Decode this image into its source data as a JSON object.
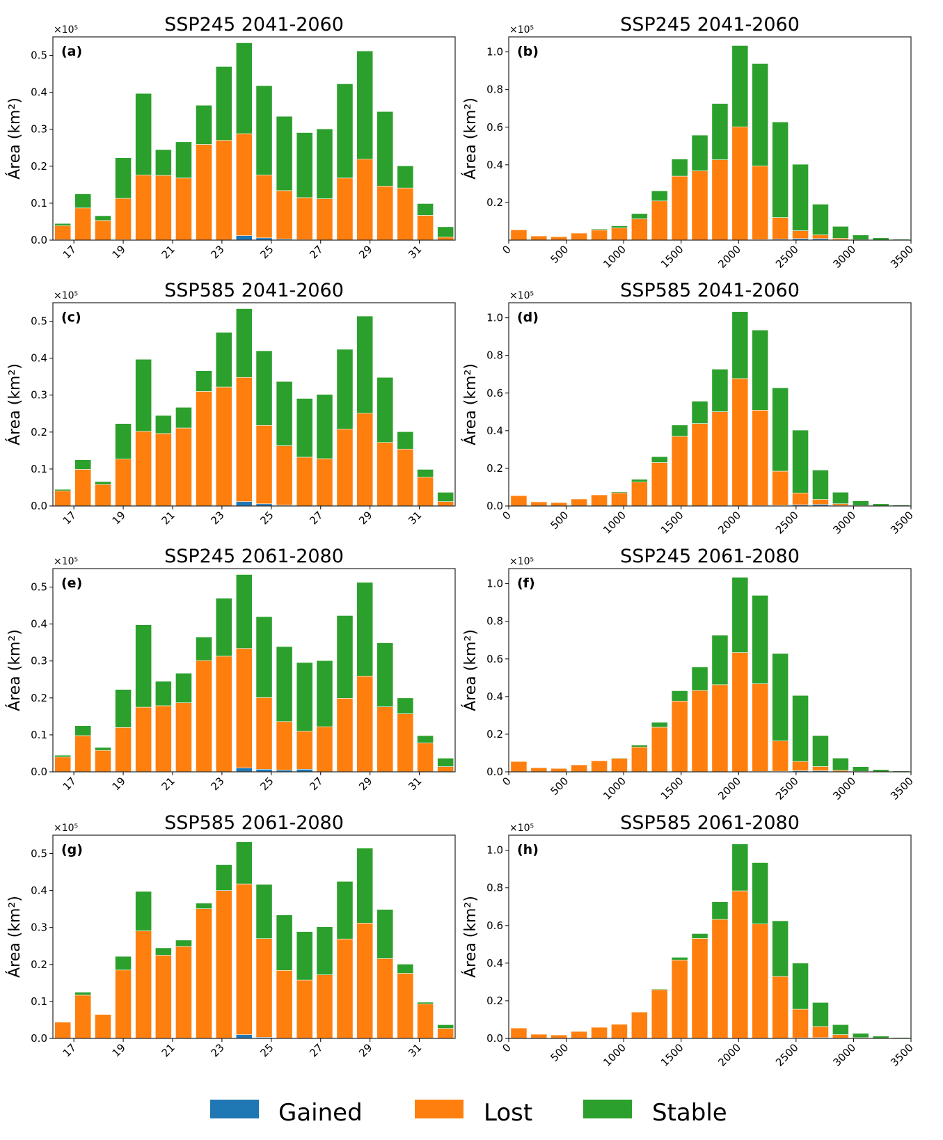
{
  "legend": [
    {
      "key": "gained",
      "label": "Gained",
      "color": "#1f77b4"
    },
    {
      "key": "lost",
      "label": "Lost",
      "color": "#ff7f0e"
    },
    {
      "key": "stable",
      "label": "Stable",
      "color": "#2ca02c"
    }
  ],
  "chart_data": [
    {
      "type": "bar",
      "stacked": true,
      "panel": "(a)",
      "title": "SSP245 2041-2060",
      "ylabel": "Área (km²)",
      "xlabel": "",
      "y_multiplier": "×10⁵",
      "xlim": [
        16.15,
        32.45
      ],
      "ylim": [
        0,
        0.55
      ],
      "xticks": [
        17,
        19,
        21,
        23,
        25,
        27,
        29,
        31
      ],
      "yticks": [
        0.0,
        0.1,
        0.2,
        0.3,
        0.4,
        0.5
      ],
      "x": [
        16.55,
        17.37,
        18.18,
        19.0,
        19.82,
        20.63,
        21.45,
        22.27,
        23.08,
        23.9,
        24.71,
        25.53,
        26.35,
        27.16,
        27.98,
        28.79,
        29.61,
        30.43,
        31.24,
        32.06
      ],
      "series": [
        {
          "name": "Gained",
          "values": [
            0.001,
            0,
            0,
            0.001,
            0,
            0,
            0,
            0,
            0,
            0.012,
            0.006,
            0.003,
            0.001,
            0,
            0,
            0,
            0,
            0,
            0,
            0
          ]
        },
        {
          "name": "Lost",
          "values": [
            0.038,
            0.087,
            0.053,
            0.112,
            0.176,
            0.175,
            0.168,
            0.259,
            0.27,
            0.276,
            0.17,
            0.131,
            0.114,
            0.112,
            0.168,
            0.219,
            0.146,
            0.141,
            0.067,
            0.008
          ]
        },
        {
          "name": "Stable",
          "values": [
            0.006,
            0.038,
            0.013,
            0.11,
            0.221,
            0.07,
            0.098,
            0.106,
            0.2,
            0.246,
            0.242,
            0.201,
            0.176,
            0.189,
            0.255,
            0.293,
            0.202,
            0.06,
            0.032,
            0.028
          ]
        }
      ]
    },
    {
      "type": "bar",
      "stacked": true,
      "panel": "(b)",
      "title": "SSP245 2041-2060",
      "ylabel": "Área (km²)",
      "xlabel": "",
      "y_multiplier": "×10⁵",
      "xlim": [
        0,
        3500
      ],
      "ylim": [
        0,
        1.08
      ],
      "xticks": [
        0,
        500,
        1000,
        1500,
        2000,
        2500,
        3000,
        3500
      ],
      "yticks": [
        0.2,
        0.4,
        0.6,
        0.8,
        1.0
      ],
      "x": [
        87.5,
        262.5,
        437.5,
        612.5,
        787.5,
        962.5,
        1137.5,
        1312.5,
        1487.5,
        1662.5,
        1837.5,
        2012.5,
        2187.5,
        2362.5,
        2537.5,
        2712.5,
        2887.5,
        3062.5,
        3237.5,
        3412.5
      ],
      "series": [
        {
          "name": "Gained",
          "values": [
            0,
            0,
            0,
            0,
            0,
            0,
            0,
            0,
            0,
            0,
            0,
            0,
            0.003,
            0.005,
            0.008,
            0.008,
            0.002,
            0,
            0,
            0
          ]
        },
        {
          "name": "Lost",
          "values": [
            0.055,
            0.022,
            0.018,
            0.037,
            0.054,
            0.065,
            0.113,
            0.208,
            0.34,
            0.368,
            0.427,
            0.602,
            0.391,
            0.115,
            0.042,
            0.02,
            0.008,
            0.002,
            0,
            0
          ]
        },
        {
          "name": "Stable",
          "values": [
            0,
            0,
            0,
            0,
            0.005,
            0.011,
            0.028,
            0.054,
            0.091,
            0.19,
            0.299,
            0.432,
            0.544,
            0.508,
            0.353,
            0.163,
            0.063,
            0.025,
            0.012,
            0.005
          ]
        }
      ]
    },
    {
      "type": "bar",
      "stacked": true,
      "panel": "(c)",
      "title": "SSP585 2041-2060",
      "ylabel": "Área (km²)",
      "xlabel": "",
      "y_multiplier": "×10⁵",
      "xlim": [
        16.15,
        32.45
      ],
      "ylim": [
        0,
        0.55
      ],
      "xticks": [
        17,
        19,
        21,
        23,
        25,
        27,
        29,
        31
      ],
      "yticks": [
        0.0,
        0.1,
        0.2,
        0.3,
        0.4,
        0.5
      ],
      "x": [
        16.55,
        17.37,
        18.18,
        19.0,
        19.82,
        20.63,
        21.45,
        22.27,
        23.08,
        23.9,
        24.71,
        25.53,
        26.35,
        27.16,
        27.98,
        28.79,
        29.61,
        30.43,
        31.24,
        32.06
      ],
      "series": [
        {
          "name": "Gained",
          "values": [
            0,
            0,
            0,
            0,
            0,
            0,
            0,
            0,
            0,
            0.012,
            0.006,
            0.002,
            0,
            0,
            0,
            0,
            0,
            0,
            0,
            0
          ]
        },
        {
          "name": "Lost",
          "values": [
            0.041,
            0.099,
            0.058,
            0.127,
            0.202,
            0.196,
            0.211,
            0.31,
            0.322,
            0.336,
            0.212,
            0.161,
            0.132,
            0.128,
            0.208,
            0.251,
            0.172,
            0.154,
            0.078,
            0.012
          ]
        },
        {
          "name": "Stable",
          "values": [
            0.004,
            0.026,
            0.008,
            0.096,
            0.195,
            0.049,
            0.056,
            0.056,
            0.148,
            0.186,
            0.202,
            0.174,
            0.159,
            0.174,
            0.216,
            0.263,
            0.176,
            0.047,
            0.021,
            0.025
          ]
        }
      ]
    },
    {
      "type": "bar",
      "stacked": true,
      "panel": "(d)",
      "title": "SSP585 2041-2060",
      "ylabel": "Área (km²)",
      "xlabel": "",
      "y_multiplier": "×10⁵",
      "xlim": [
        0,
        3500
      ],
      "ylim": [
        0,
        1.08
      ],
      "xticks": [
        0,
        500,
        1000,
        1500,
        2000,
        2500,
        3000,
        3500
      ],
      "yticks": [
        0.0,
        0.2,
        0.4,
        0.6,
        0.8,
        1.0
      ],
      "x": [
        87.5,
        262.5,
        437.5,
        612.5,
        787.5,
        962.5,
        1137.5,
        1312.5,
        1487.5,
        1662.5,
        1837.5,
        2012.5,
        2187.5,
        2362.5,
        2537.5,
        2712.5,
        2887.5,
        3062.5,
        3237.5,
        3412.5
      ],
      "series": [
        {
          "name": "Gained",
          "values": [
            0,
            0,
            0,
            0,
            0,
            0,
            0,
            0,
            0,
            0,
            0,
            0,
            0.002,
            0.003,
            0.006,
            0.008,
            0.002,
            0,
            0,
            0
          ]
        },
        {
          "name": "Lost",
          "values": [
            0.055,
            0.022,
            0.018,
            0.037,
            0.059,
            0.07,
            0.127,
            0.231,
            0.37,
            0.438,
            0.501,
            0.677,
            0.507,
            0.182,
            0.063,
            0.027,
            0.01,
            0.002,
            0,
            0
          ]
        },
        {
          "name": "Stable",
          "values": [
            0,
            0,
            0,
            0,
            0,
            0.005,
            0.015,
            0.031,
            0.06,
            0.119,
            0.226,
            0.356,
            0.426,
            0.443,
            0.334,
            0.156,
            0.061,
            0.025,
            0.012,
            0.005
          ]
        }
      ]
    },
    {
      "type": "bar",
      "stacked": true,
      "panel": "(e)",
      "title": "SSP245 2061-2080",
      "ylabel": "Área (km²)",
      "xlabel": "",
      "y_multiplier": "×10⁵",
      "xlim": [
        16.15,
        32.45
      ],
      "ylim": [
        0,
        0.55
      ],
      "xticks": [
        17,
        19,
        21,
        23,
        25,
        27,
        29,
        31
      ],
      "yticks": [
        0.0,
        0.1,
        0.2,
        0.3,
        0.4,
        0.5
      ],
      "x": [
        16.55,
        17.37,
        18.18,
        19.0,
        19.82,
        20.63,
        21.45,
        22.27,
        23.08,
        23.9,
        24.71,
        25.53,
        26.35,
        27.16,
        27.98,
        28.79,
        29.61,
        30.43,
        31.24,
        32.06
      ],
      "series": [
        {
          "name": "Gained",
          "values": [
            0,
            0,
            0,
            0,
            0,
            0,
            0,
            0,
            0,
            0.011,
            0.007,
            0.005,
            0.007,
            0,
            0,
            0,
            0,
            0,
            0,
            0
          ]
        },
        {
          "name": "Lost",
          "values": [
            0.04,
            0.098,
            0.058,
            0.12,
            0.175,
            0.179,
            0.187,
            0.301,
            0.313,
            0.323,
            0.194,
            0.131,
            0.103,
            0.122,
            0.199,
            0.259,
            0.176,
            0.157,
            0.078,
            0.014
          ]
        },
        {
          "name": "Stable",
          "values": [
            0.005,
            0.027,
            0.008,
            0.103,
            0.223,
            0.066,
            0.08,
            0.064,
            0.157,
            0.2,
            0.219,
            0.203,
            0.186,
            0.179,
            0.224,
            0.254,
            0.173,
            0.043,
            0.02,
            0.023
          ]
        }
      ]
    },
    {
      "type": "bar",
      "stacked": true,
      "panel": "(f)",
      "title": "SSP245 2061-2080",
      "ylabel": "Área (km²)",
      "xlabel": "",
      "y_multiplier": "×10⁵",
      "xlim": [
        0,
        3500
      ],
      "ylim": [
        0,
        1.08
      ],
      "xticks": [
        0,
        500,
        1000,
        1500,
        2000,
        2500,
        3000,
        3500
      ],
      "yticks": [
        0.0,
        0.2,
        0.4,
        0.6,
        0.8,
        1.0
      ],
      "x": [
        87.5,
        262.5,
        437.5,
        612.5,
        787.5,
        962.5,
        1137.5,
        1312.5,
        1487.5,
        1662.5,
        1837.5,
        2012.5,
        2187.5,
        2362.5,
        2537.5,
        2712.5,
        2887.5,
        3062.5,
        3237.5,
        3412.5
      ],
      "series": [
        {
          "name": "Gained",
          "values": [
            0,
            0,
            0,
            0,
            0,
            0,
            0,
            0,
            0,
            0,
            0,
            0,
            0.002,
            0.003,
            0.006,
            0.006,
            0.001,
            0,
            0,
            0
          ]
        },
        {
          "name": "Lost",
          "values": [
            0.055,
            0.022,
            0.018,
            0.037,
            0.059,
            0.072,
            0.132,
            0.237,
            0.376,
            0.432,
            0.463,
            0.634,
            0.466,
            0.161,
            0.049,
            0.022,
            0.007,
            0.002,
            0,
            0
          ]
        },
        {
          "name": "Stable",
          "values": [
            0,
            0,
            0,
            0,
            0,
            0.003,
            0.01,
            0.026,
            0.055,
            0.126,
            0.263,
            0.4,
            0.47,
            0.465,
            0.351,
            0.165,
            0.065,
            0.025,
            0.012,
            0.005
          ]
        }
      ]
    },
    {
      "type": "bar",
      "stacked": true,
      "panel": "(g)",
      "title": "SSP585 2061-2080",
      "ylabel": "Área (km²)",
      "xlabel": "",
      "y_multiplier": "×10⁵",
      "xlim": [
        16.15,
        32.45
      ],
      "ylim": [
        0,
        0.55
      ],
      "xticks": [
        17,
        19,
        21,
        23,
        25,
        27,
        29,
        31
      ],
      "yticks": [
        0.0,
        0.1,
        0.2,
        0.3,
        0.4,
        0.5
      ],
      "x": [
        16.55,
        17.37,
        18.18,
        19.0,
        19.82,
        20.63,
        21.45,
        22.27,
        23.08,
        23.9,
        24.71,
        25.53,
        26.35,
        27.16,
        27.98,
        28.79,
        29.61,
        30.43,
        31.24,
        32.06
      ],
      "series": [
        {
          "name": "Gained",
          "values": [
            0,
            0,
            0,
            0,
            0,
            0,
            0,
            0,
            0,
            0.01,
            0.003,
            0,
            0,
            0,
            0,
            0,
            0,
            0,
            0,
            0
          ]
        },
        {
          "name": "Lost",
          "values": [
            0.044,
            0.117,
            0.065,
            0.185,
            0.291,
            0.225,
            0.249,
            0.351,
            0.4,
            0.408,
            0.267,
            0.184,
            0.158,
            0.172,
            0.269,
            0.312,
            0.216,
            0.176,
            0.093,
            0.027
          ]
        },
        {
          "name": "Stable",
          "values": [
            0.001,
            0.008,
            0.001,
            0.037,
            0.107,
            0.02,
            0.017,
            0.015,
            0.07,
            0.114,
            0.147,
            0.15,
            0.131,
            0.13,
            0.156,
            0.203,
            0.133,
            0.025,
            0.005,
            0.01
          ]
        }
      ]
    },
    {
      "type": "bar",
      "stacked": true,
      "panel": "(h)",
      "title": "SSP585 2061-2080",
      "ylabel": "Área (km²)",
      "xlabel": "",
      "y_multiplier": "×10⁵",
      "xlim": [
        0,
        3500
      ],
      "ylim": [
        0,
        1.08
      ],
      "xticks": [
        0,
        500,
        1000,
        1500,
        2000,
        2500,
        3000,
        3500
      ],
      "yticks": [
        0.0,
        0.2,
        0.4,
        0.6,
        0.8,
        1.0
      ],
      "x": [
        87.5,
        262.5,
        437.5,
        612.5,
        787.5,
        962.5,
        1137.5,
        1312.5,
        1487.5,
        1662.5,
        1837.5,
        2012.5,
        2187.5,
        2362.5,
        2537.5,
        2712.5,
        2887.5,
        3062.5,
        3237.5,
        3412.5
      ],
      "series": [
        {
          "name": "Gained",
          "values": [
            0,
            0,
            0,
            0,
            0,
            0,
            0,
            0,
            0,
            0,
            0,
            0,
            0,
            0.001,
            0.003,
            0.004,
            0.001,
            0,
            0,
            0
          ]
        },
        {
          "name": "Lost",
          "values": [
            0.055,
            0.022,
            0.018,
            0.037,
            0.059,
            0.075,
            0.14,
            0.259,
            0.416,
            0.531,
            0.632,
            0.784,
            0.608,
            0.328,
            0.152,
            0.059,
            0.019,
            0.004,
            0,
            0
          ]
        },
        {
          "name": "Stable",
          "values": [
            0,
            0,
            0,
            0,
            0,
            0,
            0,
            0.004,
            0.015,
            0.026,
            0.094,
            0.249,
            0.326,
            0.296,
            0.245,
            0.128,
            0.053,
            0.023,
            0.012,
            0.005
          ]
        }
      ]
    }
  ]
}
